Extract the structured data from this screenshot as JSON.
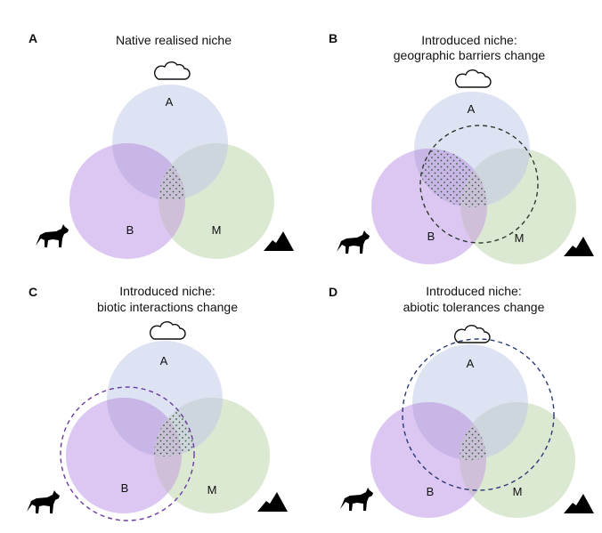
{
  "colors": {
    "circle_a": "#dde3f2",
    "circle_b": "#dcc6f2",
    "circle_m": "#dbe9d3",
    "overlap_ab": "#c7b6e6",
    "overlap_am": "#ccd6dc",
    "overlap_bm": "#cfbfd8",
    "center": "#c9c0d8",
    "stipple": "#3a5a3a",
    "dash_b": "#2f3a2f",
    "dash_c": "#6a3aa0",
    "dash_d": "#2a3a78",
    "icon": "#000000"
  },
  "panels": [
    {
      "label": "A",
      "title_lines": [
        "Native realised niche"
      ],
      "circle_labels": {
        "a": "A",
        "b": "B",
        "m": "M"
      },
      "icons": [
        "cloud-icon",
        "wolf-icon",
        "mountain-icon"
      ]
    },
    {
      "label": "B",
      "title_lines": [
        "Introduced niche:",
        "geographic barriers change"
      ],
      "circle_labels": {
        "a": "A",
        "b": "B",
        "m": "M"
      },
      "icons": [
        "cloud-icon",
        "wolf-icon",
        "mountain-icon"
      ]
    },
    {
      "label": "C",
      "title_lines": [
        "Introduced niche:",
        "biotic interactions change"
      ],
      "circle_labels": {
        "a": "A",
        "b": "B",
        "m": "M"
      },
      "icons": [
        "cloud-icon",
        "wolf-icon",
        "mountain-icon"
      ]
    },
    {
      "label": "D",
      "title_lines": [
        "Introduced niche:",
        "abiotic tolerances change"
      ],
      "circle_labels": {
        "a": "A",
        "b": "B",
        "m": "M"
      },
      "icons": [
        "cloud-icon",
        "wolf-icon",
        "mountain-icon"
      ]
    }
  ]
}
